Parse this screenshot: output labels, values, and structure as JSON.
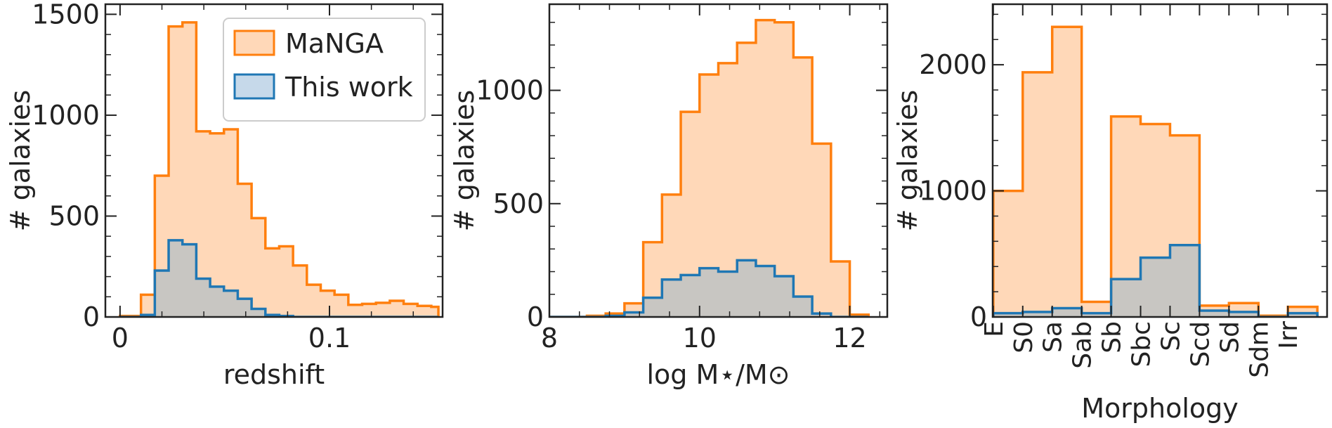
{
  "colors": {
    "manga": "#ff7f0e",
    "manga_fill": "#ffd8b8",
    "this_work": "#1f77b4",
    "overlap_fill": "#c8c6c2"
  },
  "legend": {
    "location": "top-right of first panel",
    "entries": [
      "MaNGA",
      "This work"
    ]
  },
  "chart_data": [
    {
      "type": "histogram",
      "xlabel": "redshift",
      "ylabel": "# galaxies",
      "xlim": [
        -0.007,
        0.154
      ],
      "ylim": [
        0,
        1550
      ],
      "xticks": [
        0,
        0.1
      ],
      "xtick_labels": [
        "0",
        "0.1"
      ],
      "yticks": [
        0,
        500,
        1000,
        1500
      ],
      "ytick_labels": [
        "0",
        "500",
        "1000",
        "1500"
      ],
      "bin_edges": [
        0.0,
        0.01,
        0.0166,
        0.0232,
        0.0298,
        0.0364,
        0.043,
        0.0496,
        0.0562,
        0.0628,
        0.0694,
        0.076,
        0.0826,
        0.0892,
        0.0958,
        0.1024,
        0.109,
        0.1156,
        0.1222,
        0.1288,
        0.1354,
        0.142,
        0.1486,
        0.152
      ],
      "series": [
        {
          "name": "MaNGA",
          "values": [
            5,
            110,
            700,
            1440,
            1460,
            920,
            910,
            930,
            660,
            490,
            340,
            350,
            255,
            160,
            130,
            110,
            60,
            65,
            70,
            80,
            65,
            55,
            50
          ]
        },
        {
          "name": "This work",
          "values": [
            0,
            10,
            230,
            380,
            360,
            190,
            150,
            130,
            90,
            40,
            10,
            5,
            0,
            0,
            0,
            0,
            0,
            0,
            0,
            0,
            0,
            0,
            0
          ]
        }
      ]
    },
    {
      "type": "histogram",
      "xlabel": "log M⋆/M⊙",
      "ylabel": "# galaxies",
      "xlim": [
        8,
        12.5
      ],
      "ylim": [
        0,
        1380
      ],
      "xticks": [
        8,
        10,
        12
      ],
      "xtick_labels": [
        "8",
        "10",
        "12"
      ],
      "yticks": [
        0,
        500,
        1000
      ],
      "ytick_labels": [
        "0",
        "500",
        "1000"
      ],
      "bin_edges": [
        8.0,
        8.25,
        8.5,
        8.75,
        9.0,
        9.25,
        9.5,
        9.75,
        10.0,
        10.25,
        10.5,
        10.75,
        11.0,
        11.25,
        11.5,
        11.75,
        12.0,
        12.25
      ],
      "series": [
        {
          "name": "MaNGA",
          "values": [
            0,
            0,
            5,
            15,
            60,
            330,
            540,
            905,
            1070,
            1120,
            1210,
            1310,
            1300,
            1145,
            765,
            245,
            10
          ]
        },
        {
          "name": "This work",
          "values": [
            0,
            0,
            0,
            5,
            20,
            85,
            165,
            185,
            215,
            200,
            250,
            225,
            180,
            90,
            15,
            0,
            0
          ]
        }
      ]
    },
    {
      "type": "bar",
      "xlabel": "Morphology",
      "ylabel": "# galaxies",
      "ylim": [
        0,
        2480
      ],
      "yticks": [
        0,
        1000,
        2000
      ],
      "ytick_labels": [
        "0",
        "1000",
        "2000"
      ],
      "categories": [
        "E",
        "S0",
        "Sa",
        "Sab",
        "Sb",
        "Sbc",
        "Sc",
        "Scd",
        "Sd",
        "Sdm",
        "Irr"
      ],
      "series": [
        {
          "name": "MaNGA",
          "values": [
            1000,
            1940,
            2300,
            120,
            1590,
            1530,
            1440,
            90,
            110,
            10,
            80
          ]
        },
        {
          "name": "This work",
          "values": [
            30,
            40,
            70,
            30,
            300,
            470,
            570,
            50,
            40,
            0,
            30
          ]
        }
      ]
    }
  ]
}
